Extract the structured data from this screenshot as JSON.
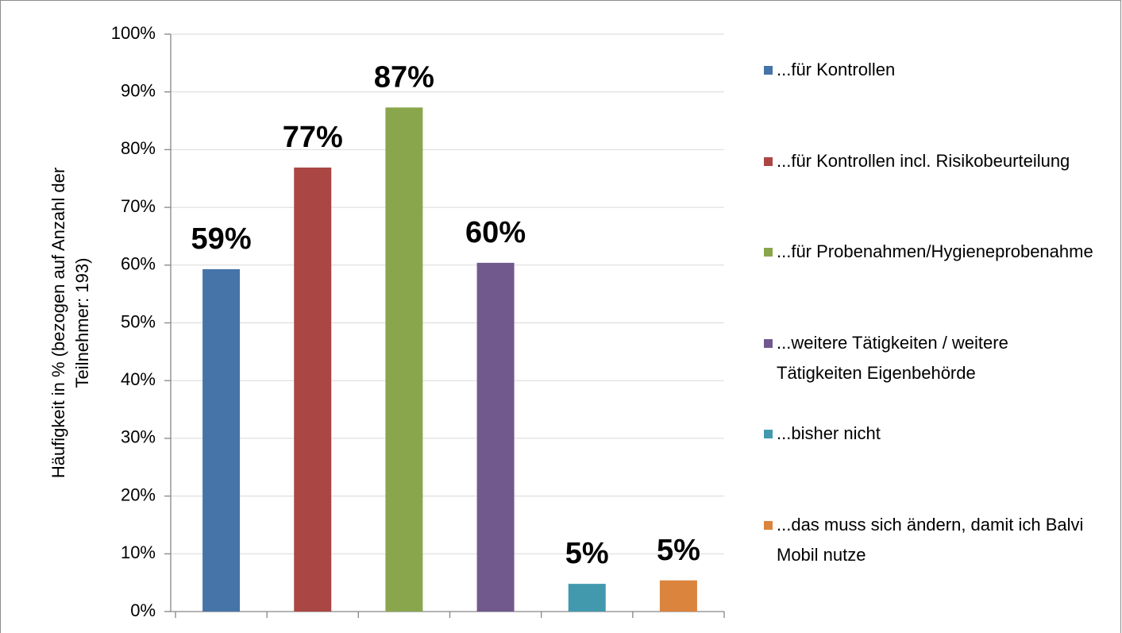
{
  "chart_data": {
    "type": "bar",
    "ylabel": [
      "Häufigkeit in % (bezogen auf Anzahl der",
      "Teilnehmer: 193)"
    ],
    "ylim": [
      0,
      100
    ],
    "yticks": [
      {
        "value": 0,
        "label": "0%"
      },
      {
        "value": 10,
        "label": "10%"
      },
      {
        "value": 20,
        "label": "20%"
      },
      {
        "value": 30,
        "label": "30%"
      },
      {
        "value": 40,
        "label": "40%"
      },
      {
        "value": 50,
        "label": "50%"
      },
      {
        "value": 60,
        "label": "60%"
      },
      {
        "value": 70,
        "label": "70%"
      },
      {
        "value": 80,
        "label": "80%"
      },
      {
        "value": 90,
        "label": "90%"
      },
      {
        "value": 100,
        "label": "100%"
      }
    ],
    "grid": true,
    "legend": "right",
    "series": [
      {
        "name": "...für Kontrollen",
        "color": "#4674a8",
        "values": [
          59.3
        ],
        "value_labels": [
          "59%"
        ]
      },
      {
        "name": "...für Kontrollen incl. Risikobeurteilung",
        "color": "#aa4644",
        "values": [
          76.9
        ],
        "value_labels": [
          "77%"
        ]
      },
      {
        "name": "...für Probenahmen/Hygieneprobenahme",
        "color": "#8aa64d",
        "values": [
          87.3
        ],
        "value_labels": [
          "87%"
        ]
      },
      {
        "name": "...weitere Tätigkeiten / weitere Tätigkeiten Eigenbehörde",
        "color": "#71598e",
        "values": [
          60.4
        ],
        "value_labels": [
          "60%"
        ]
      },
      {
        "name": "...bisher nicht",
        "color": "#4299ae",
        "values": [
          4.8
        ],
        "value_labels": [
          "5%"
        ]
      },
      {
        "name": "...das muss sich ändern, damit ich Balvi Mobil nutze",
        "color": "#db843d",
        "values": [
          5.4
        ],
        "value_labels": [
          "5%"
        ]
      }
    ]
  }
}
